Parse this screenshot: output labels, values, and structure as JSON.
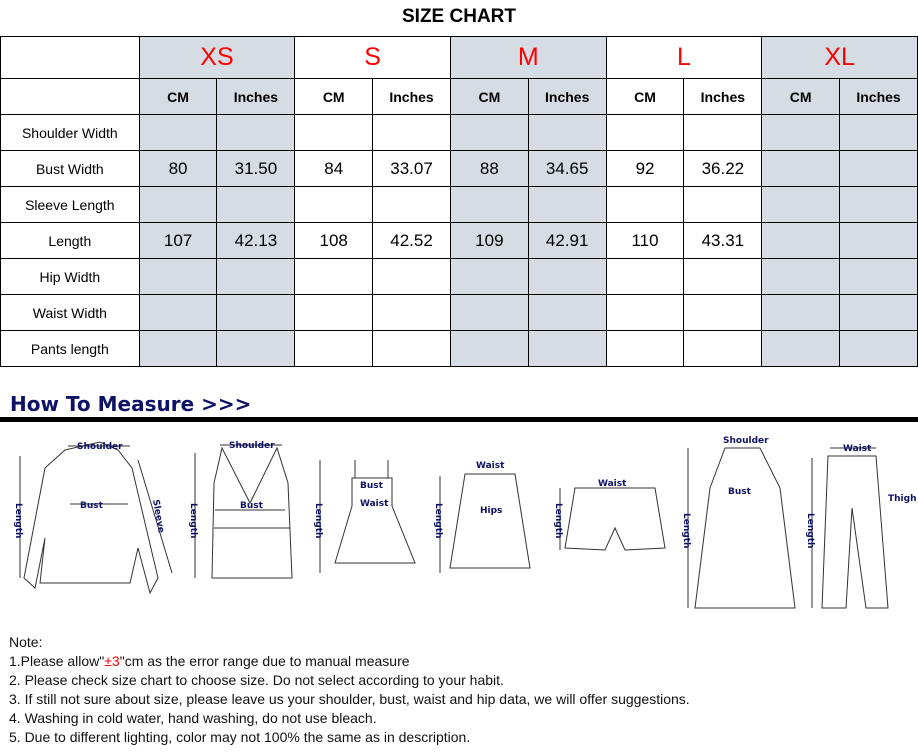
{
  "title": "SIZE CHART",
  "sizes": [
    "XS",
    "S",
    "M",
    "L",
    "XL"
  ],
  "units": [
    "CM",
    "Inches"
  ],
  "rows": [
    {
      "label": "Shoulder Width",
      "values": [
        "",
        "",
        "",
        "",
        "",
        "",
        "",
        "",
        "",
        ""
      ]
    },
    {
      "label": "Bust Width",
      "values": [
        "80",
        "31.50",
        "84",
        "33.07",
        "88",
        "34.65",
        "92",
        "36.22",
        "",
        ""
      ]
    },
    {
      "label": "Sleeve Length",
      "values": [
        "",
        "",
        "",
        "",
        "",
        "",
        "",
        "",
        "",
        ""
      ]
    },
    {
      "label": "Length",
      "values": [
        "107",
        "42.13",
        "108",
        "42.52",
        "109",
        "42.91",
        "110",
        "43.31",
        "",
        ""
      ]
    },
    {
      "label": "Hip Width",
      "values": [
        "",
        "",
        "",
        "",
        "",
        "",
        "",
        "",
        "",
        ""
      ]
    },
    {
      "label": "Waist Width",
      "values": [
        "",
        "",
        "",
        "",
        "",
        "",
        "",
        "",
        "",
        ""
      ]
    },
    {
      "label": "Pants length",
      "values": [
        "",
        "",
        "",
        "",
        "",
        "",
        "",
        "",
        "",
        ""
      ]
    }
  ],
  "colors": {
    "size_label": "#ff0000",
    "shaded_column": "#d6dce4",
    "heading": "#0d1266"
  },
  "how_to_measure": "How To Measure >>>",
  "diagram_labels": {
    "shoulder": "Shoulder",
    "bust": "Bust",
    "sleeve": "Sleeve",
    "length": "Length",
    "waist": "Waist",
    "hips": "Hips",
    "thigh": "Thigh"
  },
  "notes": {
    "heading": "Note:",
    "line1_pre": "1.Please allow\"",
    "line1_red": "±3",
    "line1_post": "\"cm as the error range due to manual measure",
    "line2": "2. Please check size chart to choose size. Do not select according to your habit.",
    "line3": "3. If still not sure about size, please leave us your shoulder, bust, waist and hip data, we will offer suggestions.",
    "line4": "4. Washing in cold water, hand washing, do not use bleach.",
    "line5": "5. Due to different lighting, color may not 100% the same as in description."
  }
}
